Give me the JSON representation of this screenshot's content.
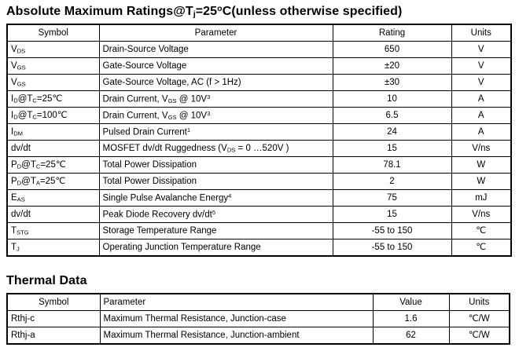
{
  "abs_max": {
    "heading": "Absolute Maximum Ratings@T_{j}=25^{o}C(unless otherwise specified)",
    "columns": [
      "Symbol",
      "Parameter",
      "Rating",
      "Units"
    ],
    "rows": [
      {
        "symbol": "V_{DS}",
        "parameter": "Drain-Source Voltage",
        "rating": "650",
        "units": "V"
      },
      {
        "symbol": "V_{GS}",
        "parameter": "Gate-Source Voltage",
        "rating": "±20",
        "units": "V"
      },
      {
        "symbol": "V_{GS}",
        "parameter": "Gate-Source Voltage, AC (f > 1Hz)",
        "rating": "±30",
        "units": "V"
      },
      {
        "symbol": "I_{D}@T_{C}=25℃",
        "parameter": "Drain Current, V_{GS} @ 10V^{3}",
        "rating": "10",
        "units": "A"
      },
      {
        "symbol": "I_{D}@T_{C}=100℃",
        "parameter": "Drain Current, V_{GS} @ 10V^{3}",
        "rating": "6.5",
        "units": "A"
      },
      {
        "symbol": "I_{DM}",
        "parameter": "Pulsed Drain Current^{1}",
        "rating": "24",
        "units": "A"
      },
      {
        "symbol": "dv/dt",
        "parameter": "MOSFET dv/dt Ruggedness (V_{DS} = 0 …520V )",
        "rating": "15",
        "units": "V/ns"
      },
      {
        "symbol": "P_{D}@T_{C}=25℃",
        "parameter": "Total Power Dissipation",
        "rating": "78.1",
        "units": "W"
      },
      {
        "symbol": "P_{D}@T_{A}=25℃",
        "parameter": "Total Power Dissipation",
        "rating": "2",
        "units": "W"
      },
      {
        "symbol": "E_{AS}",
        "parameter": "Single Pulse Avalanche Energy^{4}",
        "rating": "75",
        "units": "mJ"
      },
      {
        "symbol": "dv/dt",
        "parameter": "Peak Diode Recovery dv/dt^{5}",
        "rating": "15",
        "units": "V/ns"
      },
      {
        "symbol": "T_{STG}",
        "parameter": "Storage Temperature Range",
        "rating": "-55 to 150",
        "units": "℃"
      },
      {
        "symbol": "T_{J}",
        "parameter": "Operating Junction Temperature Range",
        "rating": "-55 to 150",
        "units": "℃"
      }
    ]
  },
  "thermal": {
    "heading": "Thermal Data",
    "columns": [
      "Symbol",
      "Parameter",
      "Value",
      "Units"
    ],
    "rows": [
      {
        "symbol": "Rthj-c",
        "parameter": "Maximum Thermal Resistance, Junction-case",
        "value": "1.6",
        "units": "℃/W"
      },
      {
        "symbol": "Rthj-a",
        "parameter": "Maximum Thermal Resistance, Junction-ambient",
        "value": "62",
        "units": "℃/W"
      }
    ]
  }
}
